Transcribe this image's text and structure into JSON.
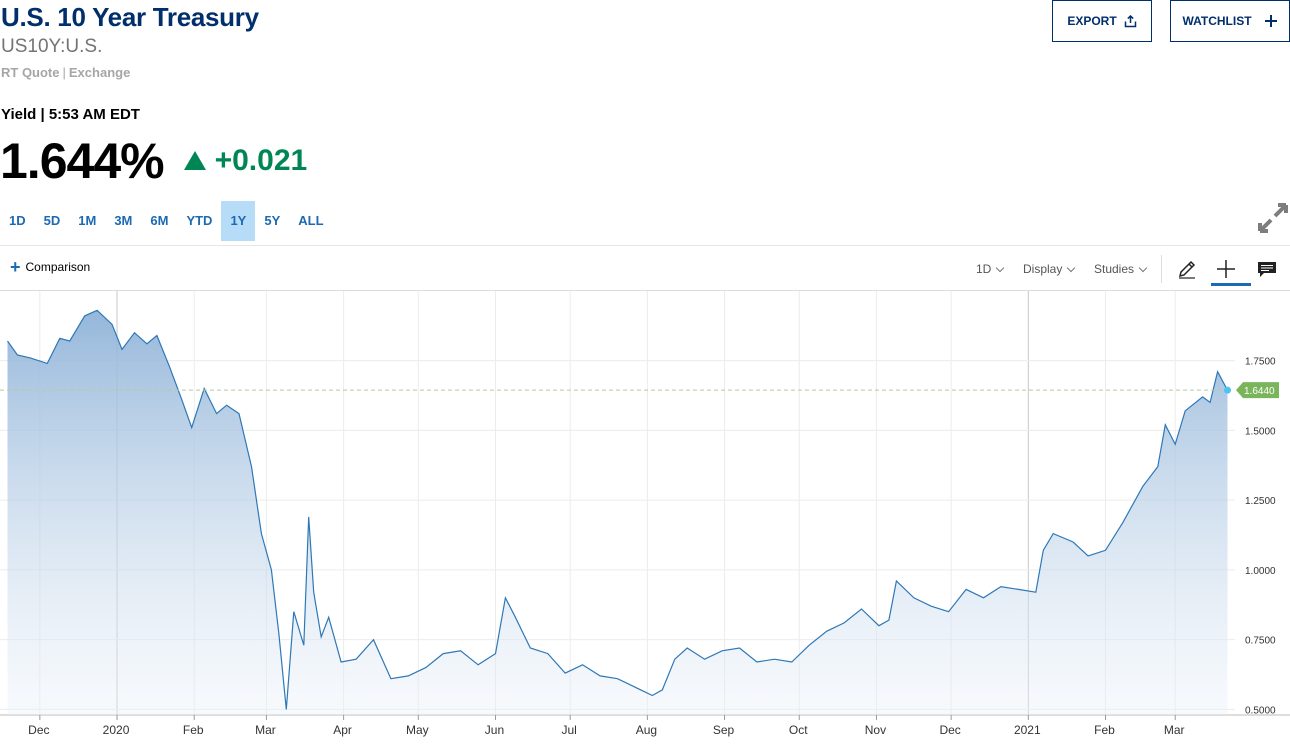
{
  "header": {
    "title": "U.S. 10 Year Treasury",
    "symbol": "US10Y:U.S.",
    "quote_type": "RT Quote",
    "quote_sep": "|",
    "exchange": "Exchange",
    "yield_time": "Yield | 5:53 AM EDT",
    "price": "1.644%",
    "change": "+0.021",
    "change_color": "#008555"
  },
  "buttons": {
    "export_label": "EXPORT",
    "watchlist_label": "WATCHLIST"
  },
  "ranges": [
    "1D",
    "5D",
    "1M",
    "3M",
    "6M",
    "YTD",
    "1Y",
    "5Y",
    "ALL"
  ],
  "active_range": "1Y",
  "toolbar": {
    "comparison_label": "Comparison",
    "interval_label": "1D",
    "display_label": "Display",
    "studies_label": "Studies"
  },
  "icons": {
    "export": "share-icon",
    "watchlist": "plus-icon",
    "expand": "expand-icon",
    "draw": "pencil-icon",
    "crosshair": "crosshair-icon",
    "comments": "comment-icon"
  },
  "chart_data": {
    "type": "area",
    "title": "",
    "xlabel": "",
    "ylabel": "",
    "x_ticks": [
      "Dec",
      "2020",
      "Feb",
      "Mar",
      "Apr",
      "May",
      "Jun",
      "Jul",
      "Aug",
      "Sep",
      "Oct",
      "Nov",
      "Dec",
      "2021",
      "Feb",
      "Mar"
    ],
    "y_ticks": [
      "1.7500",
      "1.5000",
      "1.2500",
      "1.0000",
      "0.7500",
      "0.5000"
    ],
    "ylim": [
      0.48,
      1.985
    ],
    "last_value_label": "1.6440",
    "last_value": 1.644,
    "line_color": "#2e78b7",
    "last_label_color": "#7ab55c",
    "grid": true,
    "series": [
      {
        "x": [
          "2019-11-18",
          "2019-11-22",
          "2019-11-27",
          "2019-12-04",
          "2019-12-09",
          "2019-12-13",
          "2019-12-19",
          "2019-12-24",
          "2019-12-30",
          "2020-01-03",
          "2020-01-08",
          "2020-01-13",
          "2020-01-17",
          "2020-01-22",
          "2020-01-27",
          "2020-01-31",
          "2020-02-05",
          "2020-02-10",
          "2020-02-14",
          "2020-02-19",
          "2020-02-24",
          "2020-02-28",
          "2020-03-03",
          "2020-03-06",
          "2020-03-09",
          "2020-03-12",
          "2020-03-16",
          "2020-03-18",
          "2020-03-20",
          "2020-03-23",
          "2020-03-26",
          "2020-03-31",
          "2020-04-06",
          "2020-04-13",
          "2020-04-20",
          "2020-04-27",
          "2020-05-04",
          "2020-05-11",
          "2020-05-18",
          "2020-05-25",
          "2020-06-01",
          "2020-06-05",
          "2020-06-09",
          "2020-06-15",
          "2020-06-22",
          "2020-06-29",
          "2020-07-06",
          "2020-07-13",
          "2020-07-20",
          "2020-07-27",
          "2020-08-03",
          "2020-08-07",
          "2020-08-12",
          "2020-08-17",
          "2020-08-24",
          "2020-08-31",
          "2020-09-07",
          "2020-09-14",
          "2020-09-21",
          "2020-09-28",
          "2020-10-05",
          "2020-10-12",
          "2020-10-19",
          "2020-10-26",
          "2020-11-02",
          "2020-11-06",
          "2020-11-09",
          "2020-11-16",
          "2020-11-23",
          "2020-11-30",
          "2020-12-07",
          "2020-12-14",
          "2020-12-21",
          "2020-12-28",
          "2021-01-04",
          "2021-01-07",
          "2021-01-11",
          "2021-01-19",
          "2021-01-25",
          "2021-02-01",
          "2021-02-08",
          "2021-02-16",
          "2021-02-22",
          "2021-02-25",
          "2021-03-01",
          "2021-03-05",
          "2021-03-12",
          "2021-03-15",
          "2021-03-18",
          "2021-03-22"
        ],
        "y": [
          1.82,
          1.77,
          1.76,
          1.74,
          1.83,
          1.82,
          1.91,
          1.93,
          1.88,
          1.79,
          1.85,
          1.81,
          1.84,
          1.73,
          1.61,
          1.51,
          1.65,
          1.56,
          1.59,
          1.56,
          1.37,
          1.13,
          1.0,
          0.77,
          0.5,
          0.85,
          0.73,
          1.19,
          0.92,
          0.76,
          0.83,
          0.67,
          0.68,
          0.75,
          0.61,
          0.62,
          0.65,
          0.7,
          0.71,
          0.66,
          0.7,
          0.9,
          0.83,
          0.72,
          0.7,
          0.63,
          0.66,
          0.62,
          0.61,
          0.58,
          0.55,
          0.57,
          0.68,
          0.72,
          0.68,
          0.71,
          0.72,
          0.67,
          0.68,
          0.67,
          0.73,
          0.78,
          0.81,
          0.86,
          0.8,
          0.82,
          0.96,
          0.9,
          0.87,
          0.85,
          0.93,
          0.9,
          0.94,
          0.93,
          0.92,
          1.07,
          1.13,
          1.1,
          1.05,
          1.07,
          1.17,
          1.3,
          1.37,
          1.52,
          1.45,
          1.57,
          1.62,
          1.6,
          1.71,
          1.644
        ]
      }
    ]
  }
}
